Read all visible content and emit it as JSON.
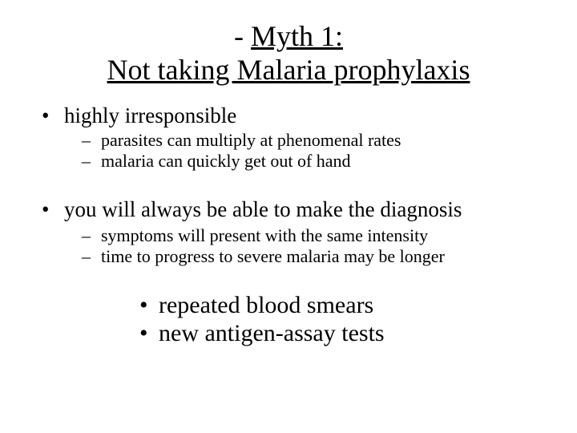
{
  "slide": {
    "background_color": "#ffffff",
    "text_color": "#000000",
    "font_family": "Times New Roman",
    "title": {
      "line1_prefix": "- ",
      "line1": "Myth 1:",
      "line2": "Not taking Malaria prophylaxis",
      "fontsize": 36,
      "underline": true,
      "align": "center"
    },
    "bullets": {
      "l1_fontsize": 27,
      "l2_fontsize": 22,
      "l3_fontsize": 30,
      "items": [
        {
          "text": "highly irresponsible",
          "sub": [
            "parasites can multiply at phenomenal rates",
            "malaria can quickly get out of hand"
          ]
        },
        {
          "text": "you will always be able to make the diagnosis",
          "sub": [
            "symptoms will present with the same intensity",
            "time to progress to severe malaria may be longer"
          ]
        }
      ],
      "emphasis": [
        "repeated blood smears",
        "new antigen-assay tests"
      ]
    }
  }
}
